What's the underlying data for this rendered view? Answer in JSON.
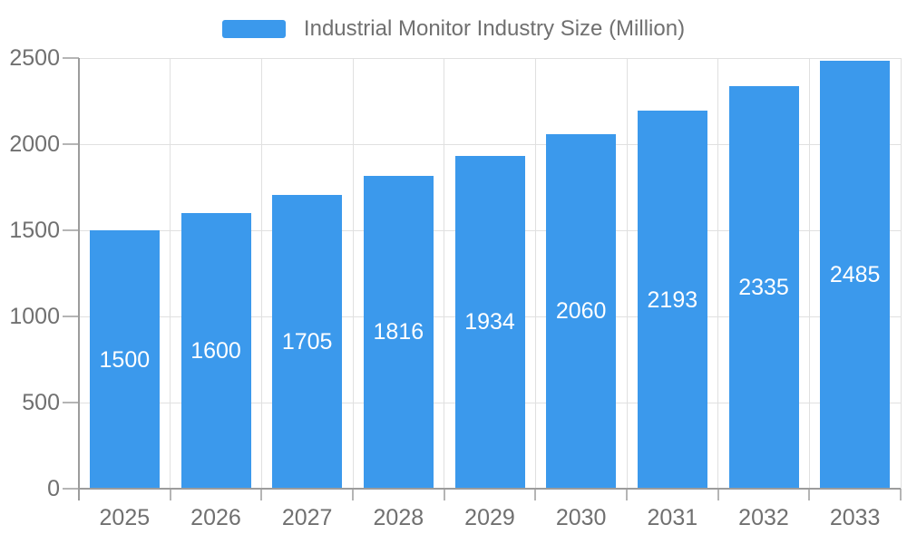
{
  "chart_data": {
    "type": "bar",
    "title": "Industrial Monitor Industry Size (Million)",
    "legend": [
      "Industrial Monitor Industry Size (Million)"
    ],
    "legend_position": "top",
    "categories": [
      "2025",
      "2026",
      "2027",
      "2028",
      "2029",
      "2030",
      "2031",
      "2032",
      "2033"
    ],
    "values": [
      1500,
      1600,
      1705,
      1816,
      1934,
      2060,
      2193,
      2335,
      2485
    ],
    "bar_value_labels_shown": true,
    "xlabel": "",
    "ylabel": "",
    "ylim": [
      0,
      2500
    ],
    "yticks": [
      0,
      500,
      1000,
      1500,
      2000,
      2500
    ],
    "grid": true,
    "colors": {
      "bar": "#3b99ec",
      "bar_label": "#ffffff",
      "axis_text": "#707070",
      "legend_text": "#707070",
      "axis_line": "#9c9c9c",
      "tick_line": "#b5b5b5",
      "grid_line": "#e0e0e0",
      "background": "#ffffff"
    }
  }
}
